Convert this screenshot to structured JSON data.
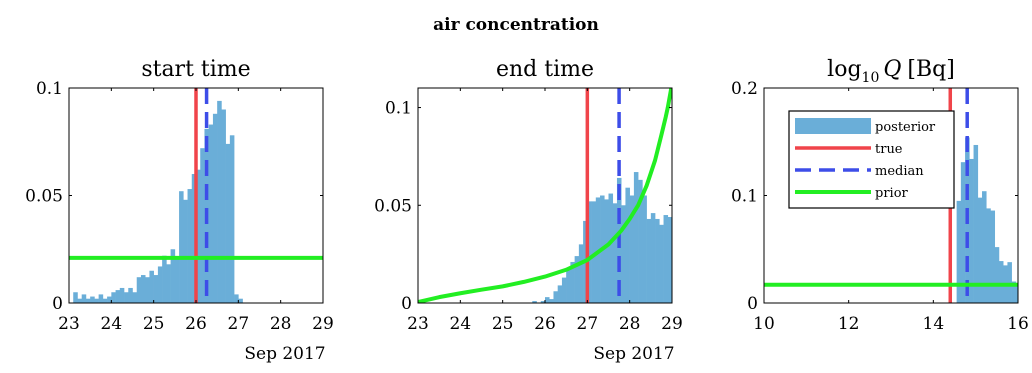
{
  "figure_title": "air concentration",
  "colors": {
    "posterior": "#6aaed8",
    "true": "#f0444a",
    "median": "#3d4de8",
    "prior": "#22ee22"
  },
  "legend": {
    "placement": "top-right of third panel",
    "entries": [
      "posterior",
      "true",
      "median",
      "prior"
    ]
  },
  "chart_data": [
    {
      "type": "bar",
      "title": "start time",
      "xlabel": "Sep 2017",
      "xlim": [
        23,
        29
      ],
      "ylim": [
        0,
        0.1
      ],
      "xticks": [
        "23",
        "24",
        "25",
        "26",
        "27",
        "28",
        "29"
      ],
      "yticks": [
        "0",
        "0.05",
        "0.1"
      ],
      "bin_start": 23.1,
      "bin_width": 0.1,
      "posterior": [
        0.005,
        0.002,
        0.004,
        0.002,
        0.003,
        0.002,
        0.004,
        0.002,
        0.003,
        0.005,
        0.006,
        0.007,
        0.005,
        0.007,
        0.005,
        0.012,
        0.013,
        0.012,
        0.015,
        0.013,
        0.017,
        0.022,
        0.018,
        0.025,
        0.021,
        0.052,
        0.048,
        0.053,
        0.06,
        0.062,
        0.072,
        0.081,
        0.083,
        0.088,
        0.094,
        0.09,
        0.074,
        0.078,
        0.004,
        0.002
      ],
      "true": 26.0,
      "median": 26.25,
      "prior": {
        "kind": "uniform",
        "value": 0.021
      }
    },
    {
      "type": "bar",
      "title": "end time",
      "xlabel": "Sep 2017",
      "xlim": [
        23,
        29
      ],
      "ylim": [
        0,
        0.11
      ],
      "xticks": [
        "23",
        "24",
        "25",
        "26",
        "27",
        "28",
        "29"
      ],
      "yticks": [
        "0",
        "0.05",
        "0.1"
      ],
      "bin_start": 25.7,
      "bin_width": 0.1,
      "posterior": [
        0.001,
        0,
        0.001,
        0.003,
        0.002,
        0.006,
        0.009,
        0.013,
        0.017,
        0.021,
        0.024,
        0.03,
        0.042,
        0.052,
        0.052,
        0.054,
        0.055,
        0.053,
        0.056,
        0.051,
        0.064,
        0.05,
        0.059,
        0.055,
        0.067,
        0.063,
        0.055,
        0.043,
        0.046,
        0.043,
        0.04,
        0.045,
        0.044,
        0.043
      ],
      "true": 27.0,
      "median": 27.75,
      "prior": {
        "kind": "curve",
        "x": [
          23.0,
          23.5,
          24.0,
          24.5,
          25.0,
          25.5,
          26.0,
          26.5,
          27.0,
          27.5,
          27.8,
          28.0,
          28.2,
          28.4,
          28.6,
          28.75,
          28.85,
          28.9,
          28.95,
          29.0
        ],
        "y": [
          0.0005,
          0.003,
          0.005,
          0.0068,
          0.0085,
          0.0108,
          0.0135,
          0.017,
          0.022,
          0.03,
          0.037,
          0.043,
          0.05,
          0.06,
          0.073,
          0.086,
          0.095,
          0.1,
          0.106,
          0.112
        ]
      }
    },
    {
      "type": "bar",
      "title": "log10 Q [Bq]",
      "title_parts": {
        "base": "log",
        "subscript": "10",
        "var": "Q",
        "unit": "[Bq]"
      },
      "xlabel": "",
      "xlim": [
        10,
        16
      ],
      "ylim": [
        0,
        0.2
      ],
      "xticks": [
        "10",
        "12",
        "14",
        "16"
      ],
      "yticks": [
        "0",
        "0.1",
        "0.2"
      ],
      "bin_start": 14.55,
      "bin_width": 0.1,
      "posterior": [
        0.095,
        0.131,
        0.154,
        0.134,
        0.147,
        0.098,
        0.104,
        0.088,
        0.086,
        0.052,
        0.039,
        0.035,
        0.038,
        0.02,
        0.017,
        0.018,
        0.004,
        0.006,
        0.001
      ],
      "true": 14.4,
      "median": 14.8,
      "prior": {
        "kind": "uniform",
        "value": 0.017
      }
    }
  ]
}
